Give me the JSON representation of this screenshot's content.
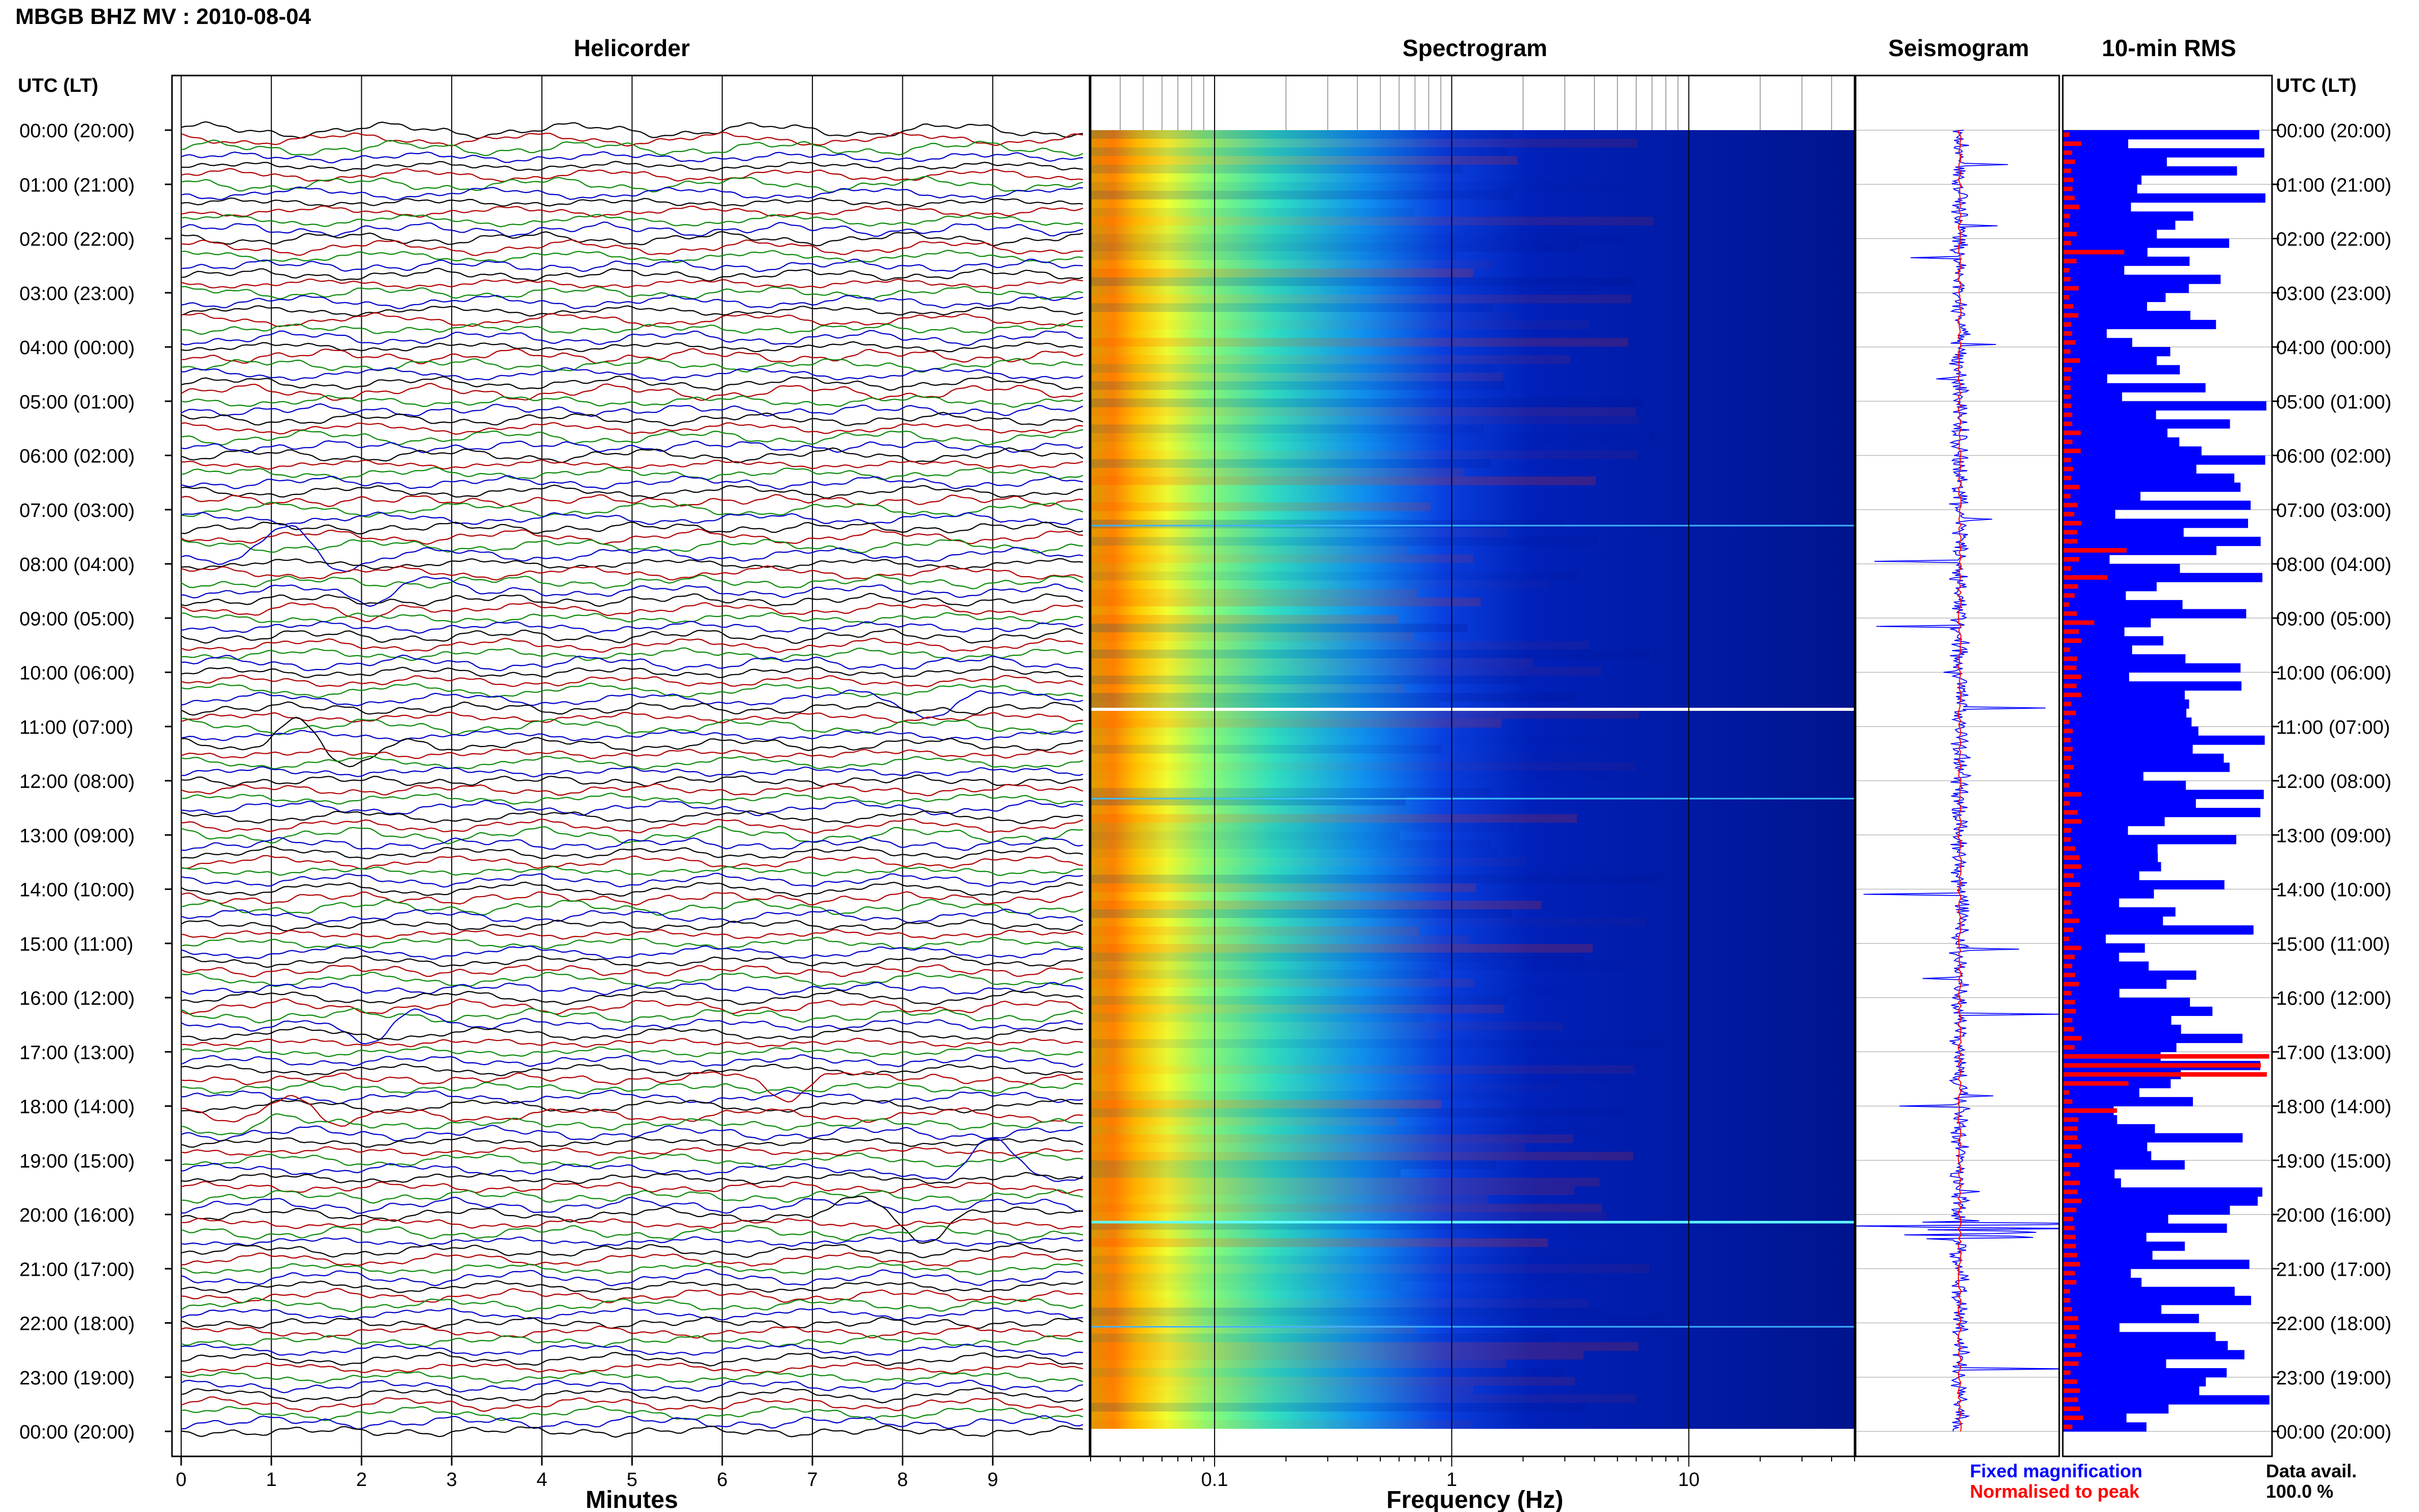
{
  "header": {
    "station_title": "MBGB BHZ MV : 2010-08-04",
    "left_axis_title": "UTC (LT)",
    "right_axis_title": "UTC (LT)"
  },
  "colors": {
    "trace_cycle": [
      "#000000",
      "#b00000",
      "#0a8a0a",
      "#0000c8"
    ],
    "fixed": "#0000ff",
    "normalised": "#ff0000"
  },
  "chart_data": [
    {
      "type": "line",
      "title": "Helicorder",
      "xlabel": "Minutes",
      "x_ticks": [
        "0",
        "1",
        "2",
        "3",
        "4",
        "5",
        "6",
        "7",
        "8",
        "9"
      ],
      "xlim": [
        0,
        10
      ],
      "rows": 145,
      "y_ticks": [
        "00:00 (20:00)",
        "01:00 (21:00)",
        "02:00 (22:00)",
        "03:00 (23:00)",
        "04:00 (00:00)",
        "05:00 (01:00)",
        "06:00 (02:00)",
        "07:00 (03:00)",
        "08:00 (04:00)",
        "09:00 (05:00)",
        "10:00 (06:00)",
        "11:00 (07:00)",
        "12:00 (08:00)",
        "13:00 (09:00)",
        "14:00 (10:00)",
        "15:00 (11:00)",
        "16:00 (12:00)",
        "17:00 (13:00)",
        "18:00 (14:00)",
        "19:00 (15:00)",
        "20:00 (16:00)",
        "21:00 (17:00)",
        "22:00 (18:00)",
        "23:00 (19:00)",
        "00:00 (20:00)"
      ],
      "grid": true
    },
    {
      "type": "heatmap",
      "title": "Spectrogram",
      "xlabel": "Frequency (Hz)",
      "x_scale": "log",
      "x_ticks": [
        "0.1",
        "1",
        "10"
      ],
      "xlim": [
        0.03,
        50
      ],
      "colormap": "jet"
    },
    {
      "type": "line",
      "title": "Seismogram"
    },
    {
      "type": "bar",
      "title": "10-min RMS",
      "orientation": "horizontal",
      "series": [
        {
          "name": "Fixed magnification",
          "color": "#0000ff"
        },
        {
          "name": "Normalised to peak",
          "color": "#ff0000"
        }
      ]
    }
  ],
  "footer": {
    "legend_fixed": "Fixed magnification",
    "legend_normalised": "Normalised to peak",
    "data_avail_label": "Data avail.",
    "data_avail_value": "100.0 %"
  }
}
